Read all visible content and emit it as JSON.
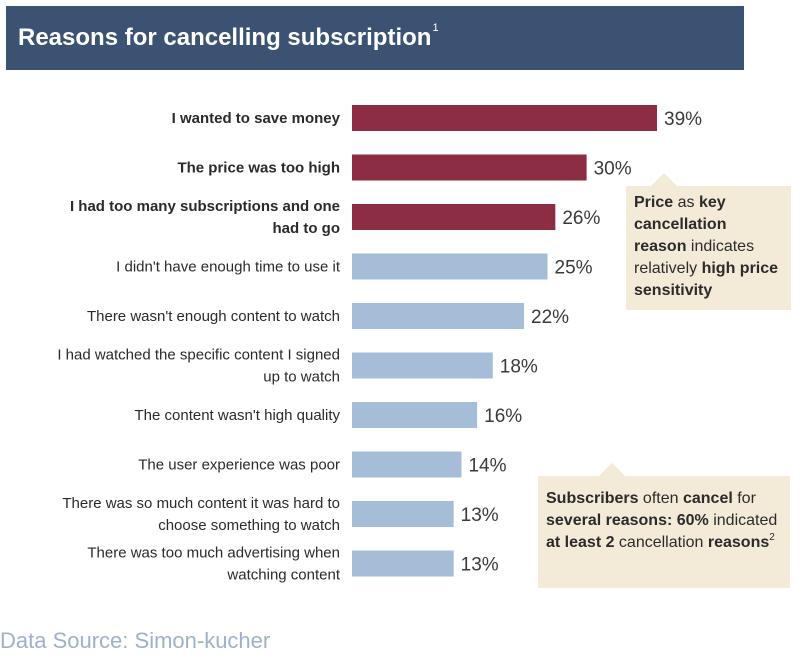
{
  "header": {
    "title": "Reasons for cancelling subscription",
    "title_sup": "1"
  },
  "chart_data": {
    "type": "bar",
    "orientation": "horizontal",
    "title": "Reasons for cancelling subscription",
    "unit": "%",
    "categories": [
      [
        "I wanted to save money"
      ],
      [
        "The price was too high"
      ],
      [
        "I had too many subscriptions and one",
        "had to go"
      ],
      [
        "I didn't have enough time to use it"
      ],
      [
        "There wasn't enough content to watch"
      ],
      [
        "I had watched the specific content I signed",
        "up to watch"
      ],
      [
        "The content wasn't high quality"
      ],
      [
        "The user experience was poor"
      ],
      [
        "There was so much content it was hard to",
        "choose something to watch"
      ],
      [
        "There was too much advertising when",
        "watching content"
      ]
    ],
    "values": [
      39,
      30,
      26,
      25,
      22,
      18,
      16,
      14,
      13,
      13
    ],
    "value_labels": [
      "39%",
      "30%",
      "26%",
      "25%",
      "22%",
      "18%",
      "16%",
      "14%",
      "13%",
      "13%"
    ],
    "highlighted": [
      true,
      true,
      true,
      false,
      false,
      false,
      false,
      false,
      false,
      false
    ],
    "colors": {
      "highlight": "#8c2d44",
      "normal": "#a6bdd7"
    },
    "xlim": [
      0,
      39
    ]
  },
  "callouts": {
    "price": {
      "parts": [
        {
          "text": "Price",
          "bold": true
        },
        {
          "text": " as ",
          "bold": false
        },
        {
          "text": "key cancellation reason",
          "bold": true
        },
        {
          "text": " indicates relatively ",
          "bold": false
        },
        {
          "text": "high price sensitivity",
          "bold": true
        }
      ]
    },
    "reasons": {
      "parts": [
        {
          "text": "Subscribers",
          "bold": true
        },
        {
          "text": " often ",
          "bold": false
        },
        {
          "text": "cancel",
          "bold": true
        },
        {
          "text": " for ",
          "bold": false
        },
        {
          "text": "several reasons: 60%",
          "bold": true
        },
        {
          "text": " indicated ",
          "bold": false
        },
        {
          "text": "at least 2",
          "bold": true
        },
        {
          "text": " cancellation ",
          "bold": false
        },
        {
          "text": "reasons",
          "bold": true
        }
      ],
      "sup": "2"
    }
  },
  "footer": {
    "source": "Data Source: Simon-kucher"
  }
}
